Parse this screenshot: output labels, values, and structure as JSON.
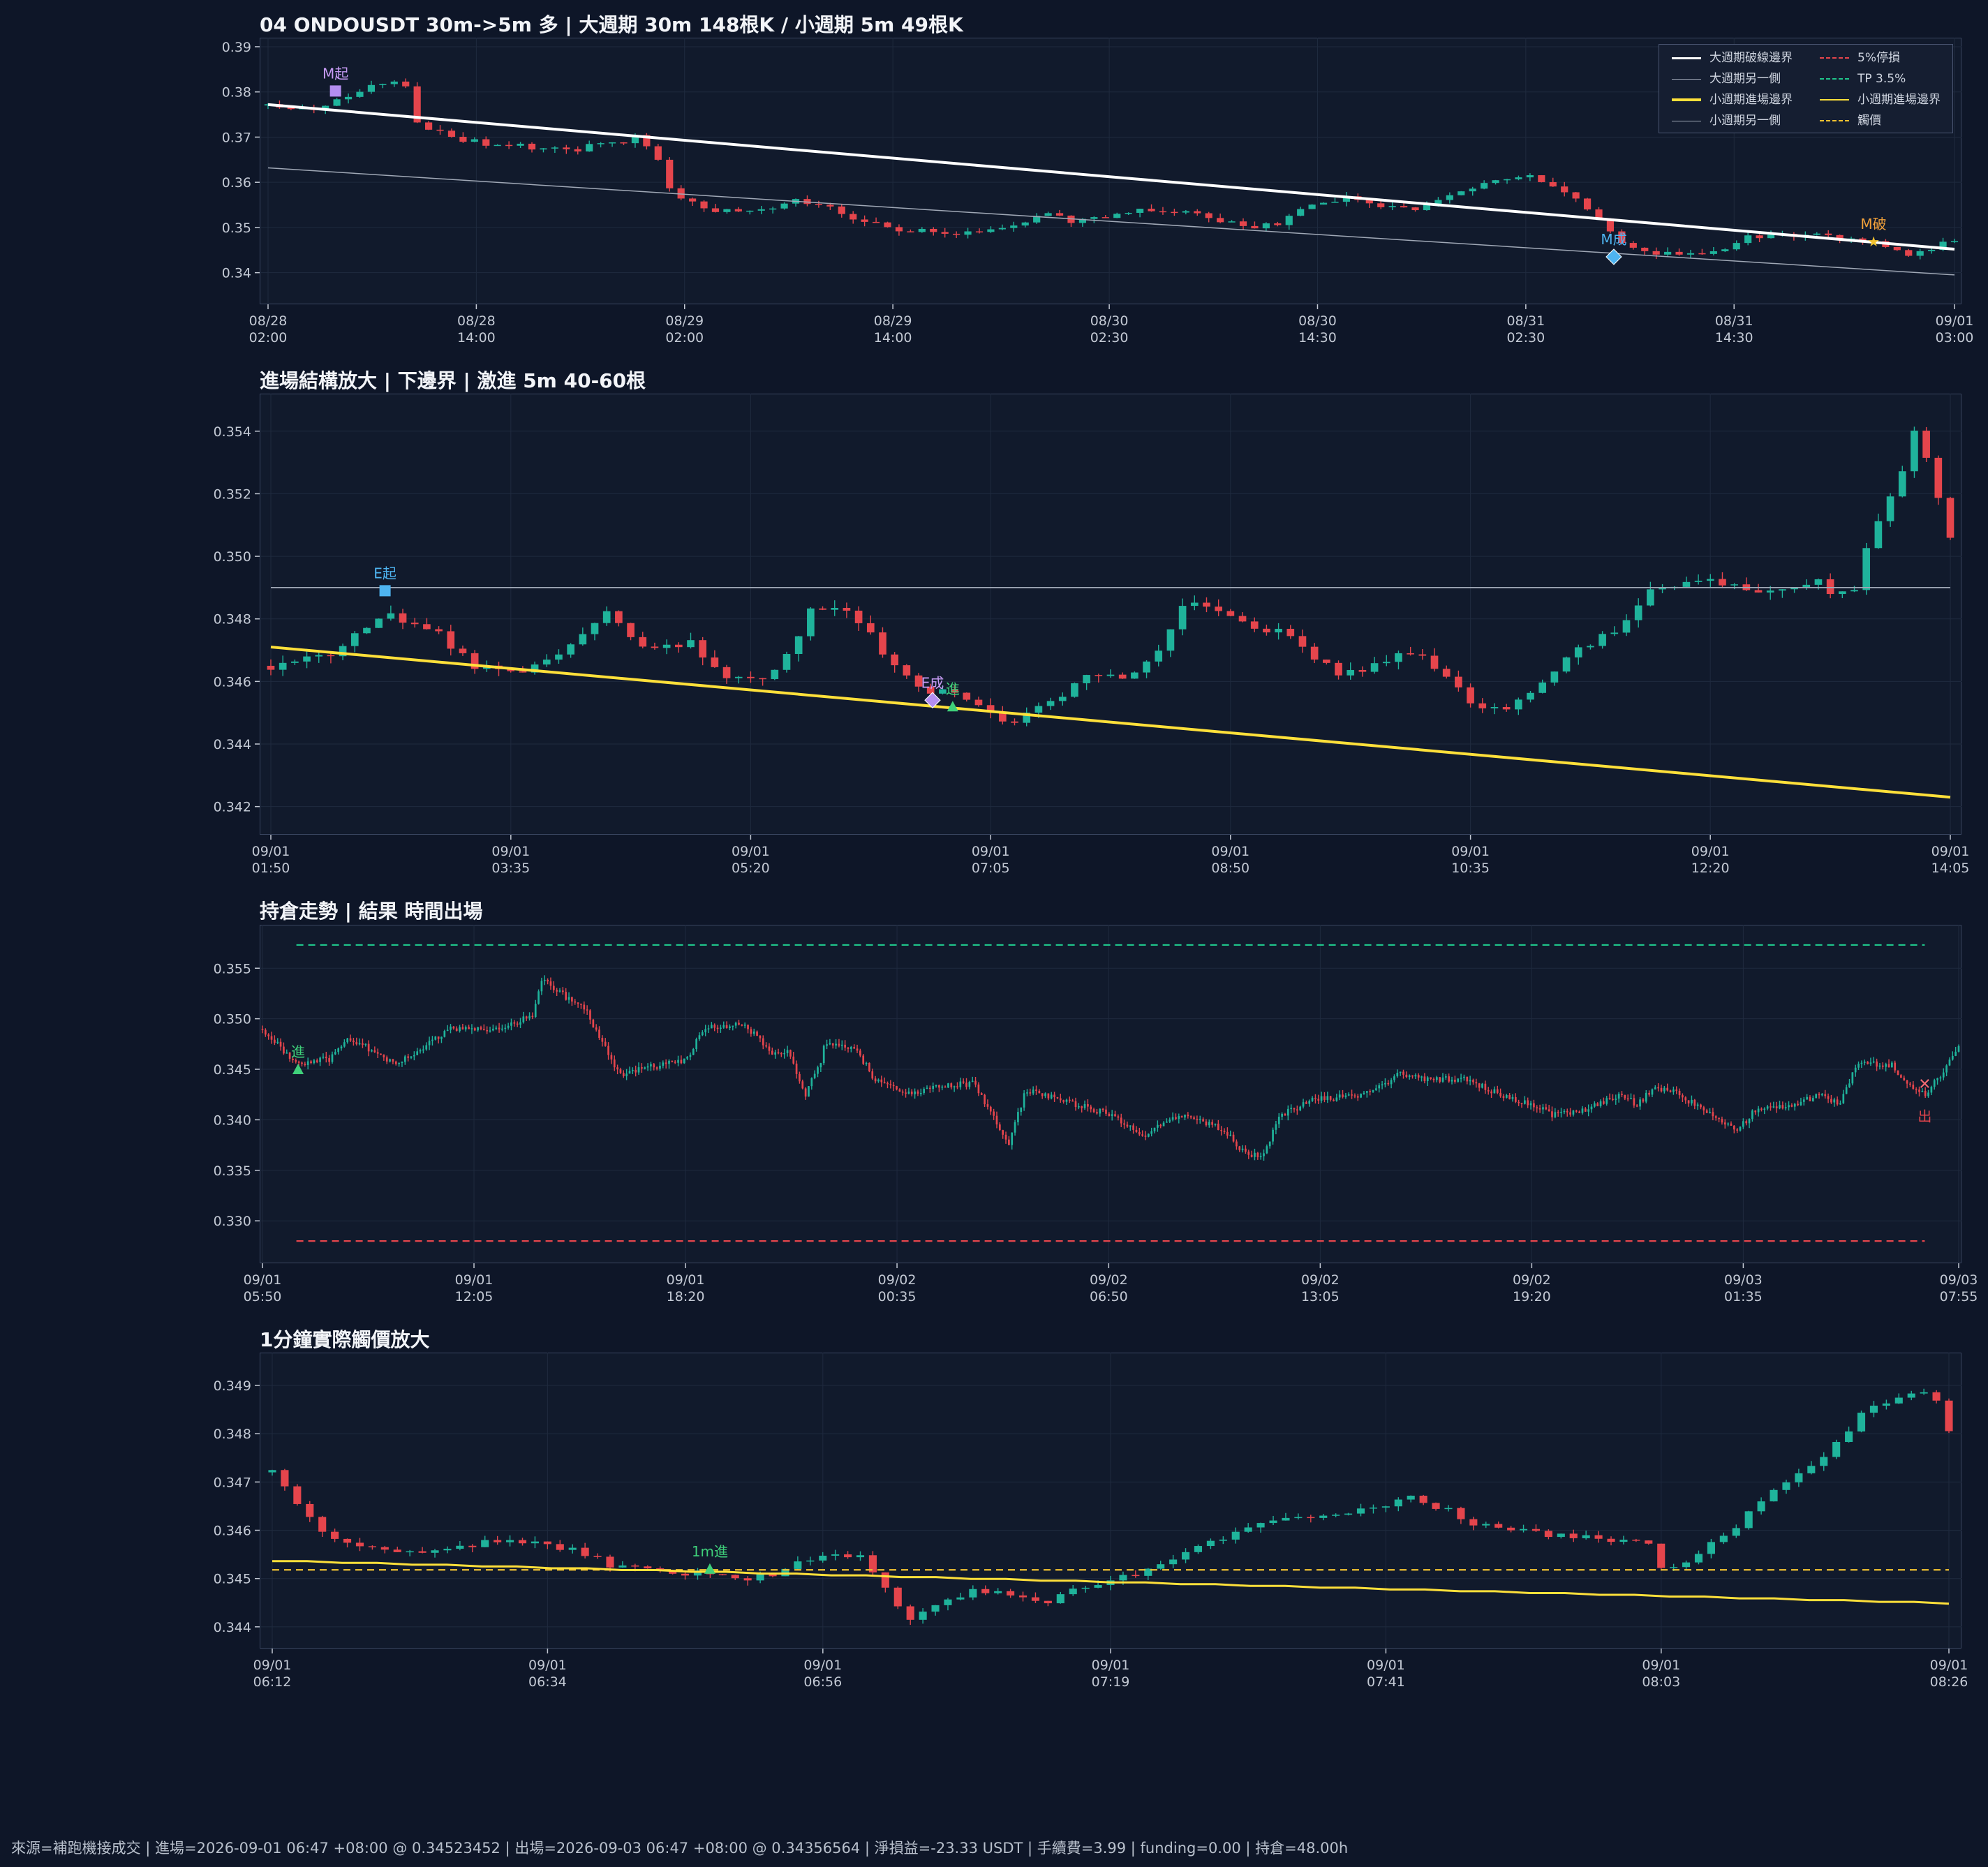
{
  "colors": {
    "up": "#1fb39b",
    "down": "#e5454c",
    "grid": "#1f2a3e",
    "tick": "#c3c9d4",
    "white_line": "#ffffff",
    "grey_line": "#a0a8b6",
    "yellow": "#ffe03a",
    "stop": "#e5454c",
    "tp": "#1fc58a",
    "trigger": "#f2c230"
  },
  "legend": {
    "items": [
      {
        "label": "大週期破線邊界",
        "color": "#ffffff",
        "style": "solid",
        "width": 3
      },
      {
        "label": "5%停損",
        "color": "#e5454c",
        "style": "dashed",
        "width": 2
      },
      {
        "label": "大週期另一側",
        "color": "#a0a8b6",
        "style": "solid",
        "width": 1.5
      },
      {
        "label": "TP 3.5%",
        "color": "#1fc58a",
        "style": "dashed",
        "width": 2
      },
      {
        "label": "小週期進場邊界",
        "color": "#ffe03a",
        "style": "solid",
        "width": 4
      },
      {
        "label": "小週期進場邊界",
        "color": "#ffe03a",
        "style": "solid",
        "width": 2
      },
      {
        "label": "小週期另一側",
        "color": "#a0a8b6",
        "style": "solid",
        "width": 1.5
      },
      {
        "label": "觸價",
        "color": "#f2c230",
        "style": "dashed",
        "width": 2
      }
    ]
  },
  "footer": "來源=補跑機接成交 | 進場=2026-09-01 06:47 +08:00 @ 0.34523452 | 出場=2026-09-03 06:47 +08:00 @ 0.34356564 | 淨損益=-23.33 USDT | 手續費=3.99 | funding=0.00 | 持倉=48.00h",
  "chart_data": [
    {
      "type": "candlestick",
      "title": "04 ONDOUSDT 30m->5m 多 | 大週期 30m 148根K / 小週期 5m 49根K",
      "candles": 148,
      "ylim": [
        0.333,
        0.392
      ],
      "y_ticks": [
        "0.34",
        "0.35",
        "0.36",
        "0.37",
        "0.38",
        "0.39"
      ],
      "x_ticks": [
        "08/28\n02:00",
        "08/28\n14:00",
        "08/29\n02:00",
        "08/29\n14:00",
        "08/30\n02:30",
        "08/30\n14:30",
        "08/31\n02:30",
        "08/31\n14:30",
        "09/01\n03:00"
      ],
      "x_tick_pos": [
        0,
        0.1235,
        0.247,
        0.3705,
        0.4988,
        0.6223,
        0.7458,
        0.8693,
        1.0
      ],
      "path": [
        [
          0,
          0.377
        ],
        [
          0.03,
          0.376
        ],
        [
          0.06,
          0.381
        ],
        [
          0.08,
          0.383
        ],
        [
          0.09,
          0.372
        ],
        [
          0.12,
          0.369
        ],
        [
          0.15,
          0.368
        ],
        [
          0.18,
          0.367
        ],
        [
          0.2,
          0.369
        ],
        [
          0.22,
          0.37
        ],
        [
          0.23,
          0.366
        ],
        [
          0.24,
          0.357
        ],
        [
          0.26,
          0.354
        ],
        [
          0.29,
          0.353
        ],
        [
          0.31,
          0.356
        ],
        [
          0.33,
          0.355
        ],
        [
          0.35,
          0.351
        ],
        [
          0.37,
          0.35
        ],
        [
          0.39,
          0.349
        ],
        [
          0.4,
          0.348
        ],
        [
          0.42,
          0.349
        ],
        [
          0.44,
          0.35
        ],
        [
          0.46,
          0.353
        ],
        [
          0.48,
          0.351
        ],
        [
          0.5,
          0.353
        ],
        [
          0.53,
          0.354
        ],
        [
          0.56,
          0.352
        ],
        [
          0.58,
          0.35
        ],
        [
          0.6,
          0.351
        ],
        [
          0.62,
          0.355
        ],
        [
          0.64,
          0.357
        ],
        [
          0.66,
          0.355
        ],
        [
          0.68,
          0.354
        ],
        [
          0.7,
          0.357
        ],
        [
          0.72,
          0.36
        ],
        [
          0.74,
          0.361
        ],
        [
          0.75,
          0.362
        ],
        [
          0.765,
          0.358
        ],
        [
          0.78,
          0.355
        ],
        [
          0.79,
          0.351
        ],
        [
          0.8,
          0.347
        ],
        [
          0.82,
          0.344
        ],
        [
          0.84,
          0.344
        ],
        [
          0.86,
          0.345
        ],
        [
          0.88,
          0.348
        ],
        [
          0.92,
          0.348
        ],
        [
          0.95,
          0.347
        ],
        [
          0.97,
          0.344
        ],
        [
          1.0,
          0.347
        ]
      ],
      "lines": [
        {
          "name": "大週期破線邊界",
          "color": "#ffffff",
          "width": 4,
          "y0": 0.3772,
          "y1": 0.3452
        },
        {
          "name": "大週期另一側",
          "color": "#a0a8b6",
          "width": 1.5,
          "y0": 0.3632,
          "y1": 0.3395
        }
      ],
      "annotations": [
        {
          "text": "M起",
          "x": 0.04,
          "y": 0.3802,
          "color": "#c79cf5",
          "marker": "square",
          "mcolor": "#b48ef0"
        },
        {
          "text": "M成",
          "x": 0.798,
          "y": 0.3435,
          "color": "#4eb4f0",
          "marker": "diamond",
          "mcolor": "#4eb4f0"
        },
        {
          "text": "M破",
          "x": 0.952,
          "y": 0.3469,
          "color": "#f2a13a",
          "marker": "star",
          "mcolor": "#f2c230"
        }
      ]
    },
    {
      "type": "candlestick",
      "title": "進場結構放大 | 下邊界 | 激進 5m 40-60根",
      "candles": 141,
      "ylim": [
        0.3411,
        0.3552
      ],
      "y_ticks": [
        "0.342",
        "0.344",
        "0.346",
        "0.348",
        "0.350",
        "0.352",
        "0.354"
      ],
      "x_ticks": [
        "09/01\n01:50",
        "09/01\n03:35",
        "09/01\n05:20",
        "09/01\n07:05",
        "09/01\n08:50",
        "09/01\n10:35",
        "09/01\n12:20",
        "09/01\n14:05"
      ],
      "x_tick_pos": [
        0,
        0.1429,
        0.2857,
        0.4286,
        0.5714,
        0.7143,
        0.8571,
        1.0
      ],
      "path": [
        [
          0,
          0.3465
        ],
        [
          0.04,
          0.347
        ],
        [
          0.07,
          0.3482
        ],
        [
          0.1,
          0.3475
        ],
        [
          0.12,
          0.3465
        ],
        [
          0.15,
          0.3462
        ],
        [
          0.18,
          0.3472
        ],
        [
          0.2,
          0.3482
        ],
        [
          0.22,
          0.3472
        ],
        [
          0.25,
          0.3472
        ],
        [
          0.27,
          0.3462
        ],
        [
          0.29,
          0.346
        ],
        [
          0.31,
          0.347
        ],
        [
          0.32,
          0.3482
        ],
        [
          0.33,
          0.3485
        ],
        [
          0.35,
          0.348
        ],
        [
          0.37,
          0.3465
        ],
        [
          0.39,
          0.3457
        ],
        [
          0.41,
          0.3455
        ],
        [
          0.43,
          0.345
        ],
        [
          0.44,
          0.3445
        ],
        [
          0.46,
          0.3452
        ],
        [
          0.48,
          0.346
        ],
        [
          0.5,
          0.3462
        ],
        [
          0.51,
          0.346
        ],
        [
          0.53,
          0.347
        ],
        [
          0.54,
          0.3482
        ],
        [
          0.55,
          0.3486
        ],
        [
          0.57,
          0.348
        ],
        [
          0.6,
          0.3476
        ],
        [
          0.62,
          0.3468
        ],
        [
          0.64,
          0.3462
        ],
        [
          0.66,
          0.3466
        ],
        [
          0.68,
          0.347
        ],
        [
          0.7,
          0.346
        ],
        [
          0.72,
          0.3452
        ],
        [
          0.74,
          0.3452
        ],
        [
          0.76,
          0.3462
        ],
        [
          0.78,
          0.347
        ],
        [
          0.8,
          0.3476
        ],
        [
          0.82,
          0.3488
        ],
        [
          0.84,
          0.349
        ],
        [
          0.86,
          0.3492
        ],
        [
          0.88,
          0.3488
        ],
        [
          0.9,
          0.349
        ],
        [
          0.92,
          0.3492
        ],
        [
          0.94,
          0.3486
        ],
        [
          0.95,
          0.3502
        ],
        [
          0.97,
          0.3525
        ],
        [
          0.98,
          0.3542
        ],
        [
          1.0,
          0.3505
        ]
      ],
      "lines": [
        {
          "name": "小週期另一側",
          "color": "#a0a8b6",
          "width": 1.8,
          "y0": 0.349,
          "y1": 0.349
        },
        {
          "name": "小週期進場邊界",
          "color": "#ffe03a",
          "width": 4,
          "y0": 0.3471,
          "y1": 0.3423
        }
      ],
      "annotations": [
        {
          "text": "E起",
          "x": 0.068,
          "y": 0.3489,
          "color": "#4eb4f0",
          "marker": "square",
          "mcolor": "#4eb4f0"
        },
        {
          "text": "E成",
          "x": 0.394,
          "y": 0.3454,
          "color": "#c79cf5",
          "marker": "diamond",
          "mcolor": "#b48ef0"
        },
        {
          "text": "進",
          "x": 0.406,
          "y": 0.3452,
          "color": "#3fd07a",
          "marker": "triangle",
          "mcolor": "#3fd07a"
        }
      ]
    },
    {
      "type": "candlestick",
      "title": "持倉走勢 | 結果 時間出場",
      "candles": 560,
      "ylim": [
        0.3258,
        0.3593
      ],
      "y_ticks": [
        "0.330",
        "0.335",
        "0.340",
        "0.345",
        "0.350",
        "0.355"
      ],
      "x_ticks": [
        "09/01\n05:50",
        "09/01\n12:05",
        "09/01\n18:20",
        "09/02\n00:35",
        "09/02\n06:50",
        "09/02\n13:05",
        "09/02\n19:20",
        "09/03\n01:35",
        "09/03\n07:55"
      ],
      "x_tick_pos": [
        0,
        0.1247,
        0.2494,
        0.3741,
        0.4989,
        0.6236,
        0.7483,
        0.873,
        1.0
      ],
      "path": [
        [
          0,
          0.349
        ],
        [
          0.02,
          0.3455
        ],
        [
          0.04,
          0.346
        ],
        [
          0.05,
          0.348
        ],
        [
          0.08,
          0.3455
        ],
        [
          0.11,
          0.349
        ],
        [
          0.14,
          0.349
        ],
        [
          0.16,
          0.3505
        ],
        [
          0.165,
          0.354
        ],
        [
          0.18,
          0.352
        ],
        [
          0.19,
          0.351
        ],
        [
          0.21,
          0.3445
        ],
        [
          0.25,
          0.346
        ],
        [
          0.26,
          0.349
        ],
        [
          0.28,
          0.3495
        ],
        [
          0.29,
          0.3485
        ],
        [
          0.3,
          0.3465
        ],
        [
          0.31,
          0.347
        ],
        [
          0.32,
          0.3425
        ],
        [
          0.33,
          0.346
        ],
        [
          0.33,
          0.3475
        ],
        [
          0.35,
          0.347
        ],
        [
          0.36,
          0.344
        ],
        [
          0.38,
          0.3425
        ],
        [
          0.4,
          0.3435
        ],
        [
          0.42,
          0.3435
        ],
        [
          0.43,
          0.3405
        ],
        [
          0.44,
          0.3375
        ],
        [
          0.45,
          0.343
        ],
        [
          0.48,
          0.3415
        ],
        [
          0.5,
          0.3405
        ],
        [
          0.52,
          0.3385
        ],
        [
          0.54,
          0.3405
        ],
        [
          0.56,
          0.3395
        ],
        [
          0.57,
          0.3385
        ],
        [
          0.58,
          0.3365
        ],
        [
          0.59,
          0.3365
        ],
        [
          0.6,
          0.3405
        ],
        [
          0.62,
          0.342
        ],
        [
          0.64,
          0.3425
        ],
        [
          0.65,
          0.3425
        ],
        [
          0.67,
          0.3445
        ],
        [
          0.69,
          0.344
        ],
        [
          0.71,
          0.344
        ],
        [
          0.73,
          0.3425
        ],
        [
          0.75,
          0.3415
        ],
        [
          0.76,
          0.3405
        ],
        [
          0.78,
          0.341
        ],
        [
          0.8,
          0.3425
        ],
        [
          0.81,
          0.3415
        ],
        [
          0.82,
          0.343
        ],
        [
          0.83,
          0.343
        ],
        [
          0.84,
          0.342
        ],
        [
          0.85,
          0.341
        ],
        [
          0.87,
          0.339
        ],
        [
          0.88,
          0.341
        ],
        [
          0.9,
          0.3415
        ],
        [
          0.92,
          0.3425
        ],
        [
          0.93,
          0.3415
        ],
        [
          0.94,
          0.3455
        ],
        [
          0.96,
          0.3455
        ],
        [
          0.97,
          0.3435
        ],
        [
          0.98,
          0.3425
        ],
        [
          0.99,
          0.3445
        ],
        [
          1.0,
          0.3475
        ]
      ],
      "lines": [
        {
          "name": "TP 3.5%",
          "color": "#1fc58a",
          "width": 2.2,
          "dash": "10,7",
          "y0": 0.3573,
          "y1": 0.3573,
          "x0": 0.02,
          "x1": 0.98
        },
        {
          "name": "5%停損",
          "color": "#e5454c",
          "width": 2.2,
          "dash": "10,7",
          "y0": 0.328,
          "y1": 0.328,
          "x0": 0.02,
          "x1": 0.98
        }
      ],
      "annotations": [
        {
          "text": "進",
          "x": 0.021,
          "y": 0.345,
          "color": "#3fd07a",
          "marker": "triangle",
          "mcolor": "#3fd07a"
        },
        {
          "text": "出",
          "x": 0.98,
          "y": 0.3436,
          "color": "#e5454c",
          "marker": "x",
          "mcolor": "#f26a72",
          "label_below": true
        }
      ]
    },
    {
      "type": "candlestick",
      "title": "1分鐘實際觸價放大",
      "candles": 135,
      "ylim": [
        0.34355,
        0.34968
      ],
      "y_ticks": [
        "0.344",
        "0.345",
        "0.346",
        "0.347",
        "0.348",
        "0.349"
      ],
      "x_ticks": [
        "09/01\n06:12",
        "09/01\n06:34",
        "09/01\n06:56",
        "09/01\n07:19",
        "09/01\n07:41",
        "09/01\n08:03",
        "09/01\n08:26"
      ],
      "x_tick_pos": [
        0,
        0.1642,
        0.3284,
        0.5,
        0.6642,
        0.8284,
        1.0
      ],
      "path": [
        [
          0,
          0.3472
        ],
        [
          0.02,
          0.3463
        ],
        [
          0.04,
          0.3457
        ],
        [
          0.06,
          0.3456
        ],
        [
          0.1,
          0.3456
        ],
        [
          0.14,
          0.3458
        ],
        [
          0.18,
          0.3456
        ],
        [
          0.2,
          0.3453
        ],
        [
          0.22,
          0.3452
        ],
        [
          0.24,
          0.3451
        ],
        [
          0.26,
          0.3451
        ],
        [
          0.28,
          0.345
        ],
        [
          0.3,
          0.3451
        ],
        [
          0.32,
          0.3454
        ],
        [
          0.35,
          0.3455
        ],
        [
          0.36,
          0.3451
        ],
        [
          0.37,
          0.3445
        ],
        [
          0.38,
          0.3442
        ],
        [
          0.4,
          0.3445
        ],
        [
          0.42,
          0.3448
        ],
        [
          0.44,
          0.3446
        ],
        [
          0.46,
          0.3445
        ],
        [
          0.48,
          0.3448
        ],
        [
          0.5,
          0.345
        ],
        [
          0.52,
          0.3452
        ],
        [
          0.55,
          0.3456
        ],
        [
          0.58,
          0.346
        ],
        [
          0.6,
          0.3462
        ],
        [
          0.64,
          0.3464
        ],
        [
          0.67,
          0.3466
        ],
        [
          0.68,
          0.3467
        ],
        [
          0.7,
          0.3464
        ],
        [
          0.72,
          0.3461
        ],
        [
          0.76,
          0.3459
        ],
        [
          0.8,
          0.3458
        ],
        [
          0.82,
          0.3457
        ],
        [
          0.83,
          0.3452
        ],
        [
          0.85,
          0.3455
        ],
        [
          0.87,
          0.346
        ],
        [
          0.89,
          0.3467
        ],
        [
          0.91,
          0.3471
        ],
        [
          0.93,
          0.3477
        ],
        [
          0.95,
          0.3485
        ],
        [
          0.97,
          0.3488
        ],
        [
          0.99,
          0.3489
        ],
        [
          1.0,
          0.3481
        ]
      ],
      "lines": [
        {
          "name": "觸價",
          "color": "#f2c230",
          "width": 2.2,
          "dash": "10,7",
          "y0": 0.34518,
          "y1": 0.34518
        },
        {
          "name": "小週期進場邊界",
          "color": "#ffe03a",
          "width": 3,
          "stepped": true,
          "y0": 0.34536,
          "y1": 0.34448
        }
      ],
      "annotations": [
        {
          "text": "1m進",
          "x": 0.261,
          "y": 0.3452,
          "color": "#3fd07a",
          "marker": "triangle",
          "mcolor": "#3fd07a"
        }
      ]
    }
  ]
}
